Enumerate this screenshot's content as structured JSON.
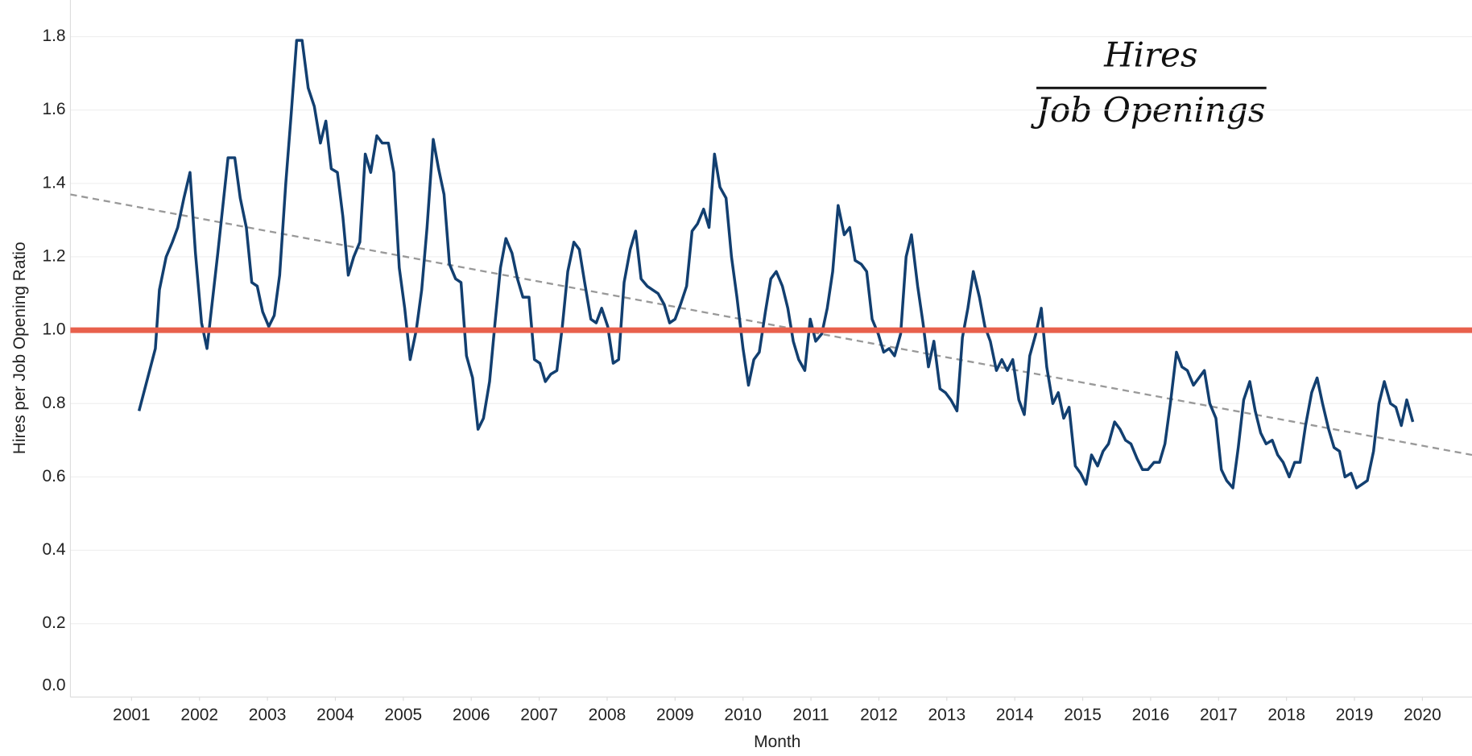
{
  "chart_data": {
    "type": "line",
    "x_label": "Month",
    "y_label": "Hires per Job Opening Ratio",
    "annotation": {
      "numerator": "Hires",
      "denominator": "Job Openings"
    },
    "xlim": [
      2000.1,
      2020.73
    ],
    "xticks": [
      2001,
      2002,
      2003,
      2004,
      2005,
      2006,
      2007,
      2008,
      2009,
      2010,
      2011,
      2012,
      2013,
      2014,
      2015,
      2016,
      2017,
      2018,
      2019,
      2020
    ],
    "ylim": [
      0,
      1.9
    ],
    "yticks": [
      {
        "value": 0,
        "label": "0.0"
      },
      0.2,
      0.4,
      0.6,
      0.8,
      {
        "value": 1,
        "label": "1.0"
      },
      1.2,
      1.4,
      1.6,
      1.8
    ],
    "grid": true,
    "reference_line": {
      "value": 1.0,
      "color": "#e8604c"
    },
    "trend_line": {
      "values": [
        1.37,
        0.66
      ],
      "color": "#999999"
    },
    "series": [
      {
        "color": "#123f70",
        "x": [
          2001.11,
          2001.35,
          2001.41,
          2001.51,
          2001.6,
          2001.68,
          2001.77,
          2001.86,
          2001.94,
          2002.03,
          2002.11,
          2002.27,
          2002.42,
          2002.52,
          2002.6,
          2002.69,
          2002.77,
          2002.85,
          2002.93,
          2003.02,
          2003.1,
          2003.18,
          2003.27,
          2003.35,
          2003.43,
          2003.51,
          2003.6,
          2003.69,
          2003.78,
          2003.86,
          2003.94,
          2004.03,
          2004.11,
          2004.19,
          2004.27,
          2004.36,
          2004.44,
          2004.52,
          2004.61,
          2004.69,
          2004.78,
          2004.86,
          2004.94,
          2005.02,
          2005.1,
          2005.19,
          2005.27,
          2005.35,
          2005.44,
          2005.52,
          2005.6,
          2005.68,
          2005.77,
          2005.85,
          2005.93,
          2006.02,
          2006.1,
          2006.18,
          2006.27,
          2006.35,
          2006.43,
          2006.51,
          2006.6,
          2006.68,
          2006.76,
          2006.85,
          2006.93,
          2007.01,
          2007.09,
          2007.17,
          2007.26,
          2007.34,
          2007.42,
          2007.51,
          2007.59,
          2007.67,
          2007.76,
          2007.84,
          2007.92,
          2008.01,
          2008.09,
          2008.17,
          2008.25,
          2008.34,
          2008.42,
          2008.5,
          2008.59,
          2008.67,
          2008.75,
          2008.84,
          2008.92,
          2009.0,
          2009.08,
          2009.17,
          2009.25,
          2009.33,
          2009.42,
          2009.5,
          2009.58,
          2009.66,
          2009.75,
          2009.83,
          2009.91,
          2010.0,
          2010.08,
          2010.16,
          2010.24,
          2010.33,
          2010.41,
          2010.49,
          2010.58,
          2010.66,
          2010.74,
          2010.82,
          2010.91,
          2010.99,
          2011.07,
          2011.16,
          2011.24,
          2011.32,
          2011.4,
          2011.49,
          2011.57,
          2011.65,
          2011.74,
          2011.82,
          2011.9,
          2011.99,
          2012.07,
          2012.15,
          2012.23,
          2012.32,
          2012.4,
          2012.48,
          2012.57,
          2012.65,
          2012.73,
          2012.81,
          2012.9,
          2012.98,
          2013.06,
          2013.15,
          2013.23,
          2013.31,
          2013.39,
          2013.48,
          2013.56,
          2013.64,
          2013.73,
          2013.81,
          2013.89,
          2013.97,
          2014.06,
          2014.14,
          2014.22,
          2014.31,
          2014.39,
          2014.47,
          2014.56,
          2014.64,
          2014.72,
          2014.8,
          2014.89,
          2014.97,
          2015.05,
          2015.13,
          2015.22,
          2015.3,
          2015.38,
          2015.47,
          2015.55,
          2015.63,
          2015.71,
          2015.8,
          2015.88,
          2015.96,
          2016.05,
          2016.13,
          2016.21,
          2016.29,
          2016.38,
          2016.46,
          2016.54,
          2016.63,
          2016.71,
          2016.79,
          2016.87,
          2016.96,
          2017.04,
          2017.12,
          2017.21,
          2017.29,
          2017.37,
          2017.46,
          2017.54,
          2017.62,
          2017.7,
          2017.79,
          2017.87,
          2017.95,
          2018.04,
          2018.12,
          2018.2,
          2018.28,
          2018.37,
          2018.45,
          2018.53,
          2018.62,
          2018.7,
          2018.78,
          2018.86,
          2018.95,
          2019.03,
          2019.11,
          2019.19,
          2019.28,
          2019.36,
          2019.44,
          2019.53,
          2019.61,
          2019.69,
          2019.77,
          2019.86
        ],
        "values": [
          0.78,
          0.95,
          1.11,
          1.2,
          1.24,
          1.28,
          1.36,
          1.43,
          1.21,
          1.02,
          0.95,
          1.21,
          1.47,
          1.47,
          1.36,
          1.28,
          1.13,
          1.12,
          1.05,
          1.01,
          1.04,
          1.15,
          1.4,
          1.59,
          1.79,
          1.79,
          1.66,
          1.61,
          1.51,
          1.57,
          1.44,
          1.43,
          1.31,
          1.15,
          1.2,
          1.24,
          1.48,
          1.43,
          1.53,
          1.51,
          1.51,
          1.43,
          1.17,
          1.06,
          0.92,
          1.0,
          1.11,
          1.28,
          1.52,
          1.44,
          1.37,
          1.18,
          1.14,
          1.13,
          0.93,
          0.87,
          0.73,
          0.76,
          0.86,
          1.02,
          1.17,
          1.25,
          1.21,
          1.14,
          1.09,
          1.09,
          0.92,
          0.91,
          0.86,
          0.88,
          0.89,
          1.01,
          1.16,
          1.24,
          1.22,
          1.13,
          1.03,
          1.02,
          1.06,
          1.01,
          0.91,
          0.92,
          1.13,
          1.22,
          1.27,
          1.14,
          1.12,
          1.11,
          1.1,
          1.07,
          1.02,
          1.03,
          1.07,
          1.12,
          1.27,
          1.29,
          1.33,
          1.28,
          1.48,
          1.39,
          1.36,
          1.2,
          1.09,
          0.95,
          0.85,
          0.92,
          0.94,
          1.05,
          1.14,
          1.16,
          1.12,
          1.06,
          0.97,
          0.92,
          0.89,
          1.03,
          0.97,
          0.99,
          1.06,
          1.16,
          1.34,
          1.26,
          1.28,
          1.19,
          1.18,
          1.16,
          1.03,
          0.99,
          0.94,
          0.95,
          0.93,
          0.99,
          1.2,
          1.26,
          1.12,
          1.02,
          0.9,
          0.97,
          0.84,
          0.83,
          0.81,
          0.78,
          0.98,
          1.06,
          1.16,
          1.09,
          1.01,
          0.97,
          0.89,
          0.92,
          0.89,
          0.92,
          0.81,
          0.77,
          0.93,
          0.99,
          1.06,
          0.9,
          0.8,
          0.83,
          0.76,
          0.79,
          0.63,
          0.61,
          0.58,
          0.66,
          0.63,
          0.67,
          0.69,
          0.75,
          0.73,
          0.7,
          0.69,
          0.65,
          0.62,
          0.62,
          0.64,
          0.64,
          0.69,
          0.8,
          0.94,
          0.9,
          0.89,
          0.85,
          0.87,
          0.89,
          0.8,
          0.76,
          0.62,
          0.59,
          0.57,
          0.68,
          0.81,
          0.86,
          0.78,
          0.72,
          0.69,
          0.7,
          0.66,
          0.64,
          0.6,
          0.64,
          0.64,
          0.74,
          0.83,
          0.87,
          0.8,
          0.73,
          0.68,
          0.67,
          0.6,
          0.61,
          0.57,
          0.58,
          0.59,
          0.67,
          0.8,
          0.86,
          0.8,
          0.79,
          0.74,
          0.81,
          0.75
        ]
      }
    ]
  }
}
